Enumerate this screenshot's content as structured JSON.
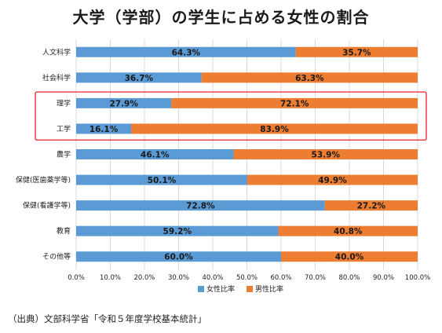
{
  "title": "大学（学部）の学生に占める女性の割合",
  "source": "（出典）文部科学省「令和５年度学校基本統計」",
  "chart_data": {
    "type": "bar",
    "orientation": "horizontal",
    "stacked": true,
    "categories": [
      "人文科学",
      "社会科学",
      "理学",
      "工学",
      "農学",
      "保健(医歯薬学等)",
      "保健(看護学等)",
      "教育",
      "その他等"
    ],
    "series": [
      {
        "name": "女性比率",
        "color": "#5b9bd5",
        "values": [
          64.3,
          36.7,
          27.9,
          16.1,
          46.1,
          50.1,
          72.8,
          59.2,
          60.0
        ],
        "labels": [
          "64.3%",
          "36.7%",
          "27.9%",
          "16.1%",
          "46.1%",
          "50.1%",
          "72.8%",
          "59.2%",
          "60.0%"
        ]
      },
      {
        "name": "男性比率",
        "color": "#ed7d31",
        "values": [
          35.7,
          63.3,
          72.1,
          83.9,
          53.9,
          49.9,
          27.2,
          40.8,
          40.0
        ],
        "labels": [
          "35.7%",
          "63.3%",
          "72.1%",
          "83.9%",
          "53.9%",
          "49.9%",
          "27.2%",
          "40.8%",
          "40.0%"
        ]
      }
    ],
    "xlim": [
      0,
      100
    ],
    "xticks": [
      "0.0%",
      "10.0%",
      "20.0%",
      "30.0%",
      "40.0%",
      "50.0%",
      "60.0%",
      "70.0%",
      "80.0%",
      "90.0%",
      "100.0%"
    ],
    "grid": "vertical",
    "legend": "bottom-center",
    "highlight": {
      "categories": [
        "理学",
        "工学"
      ],
      "color": "#e8202a"
    }
  }
}
